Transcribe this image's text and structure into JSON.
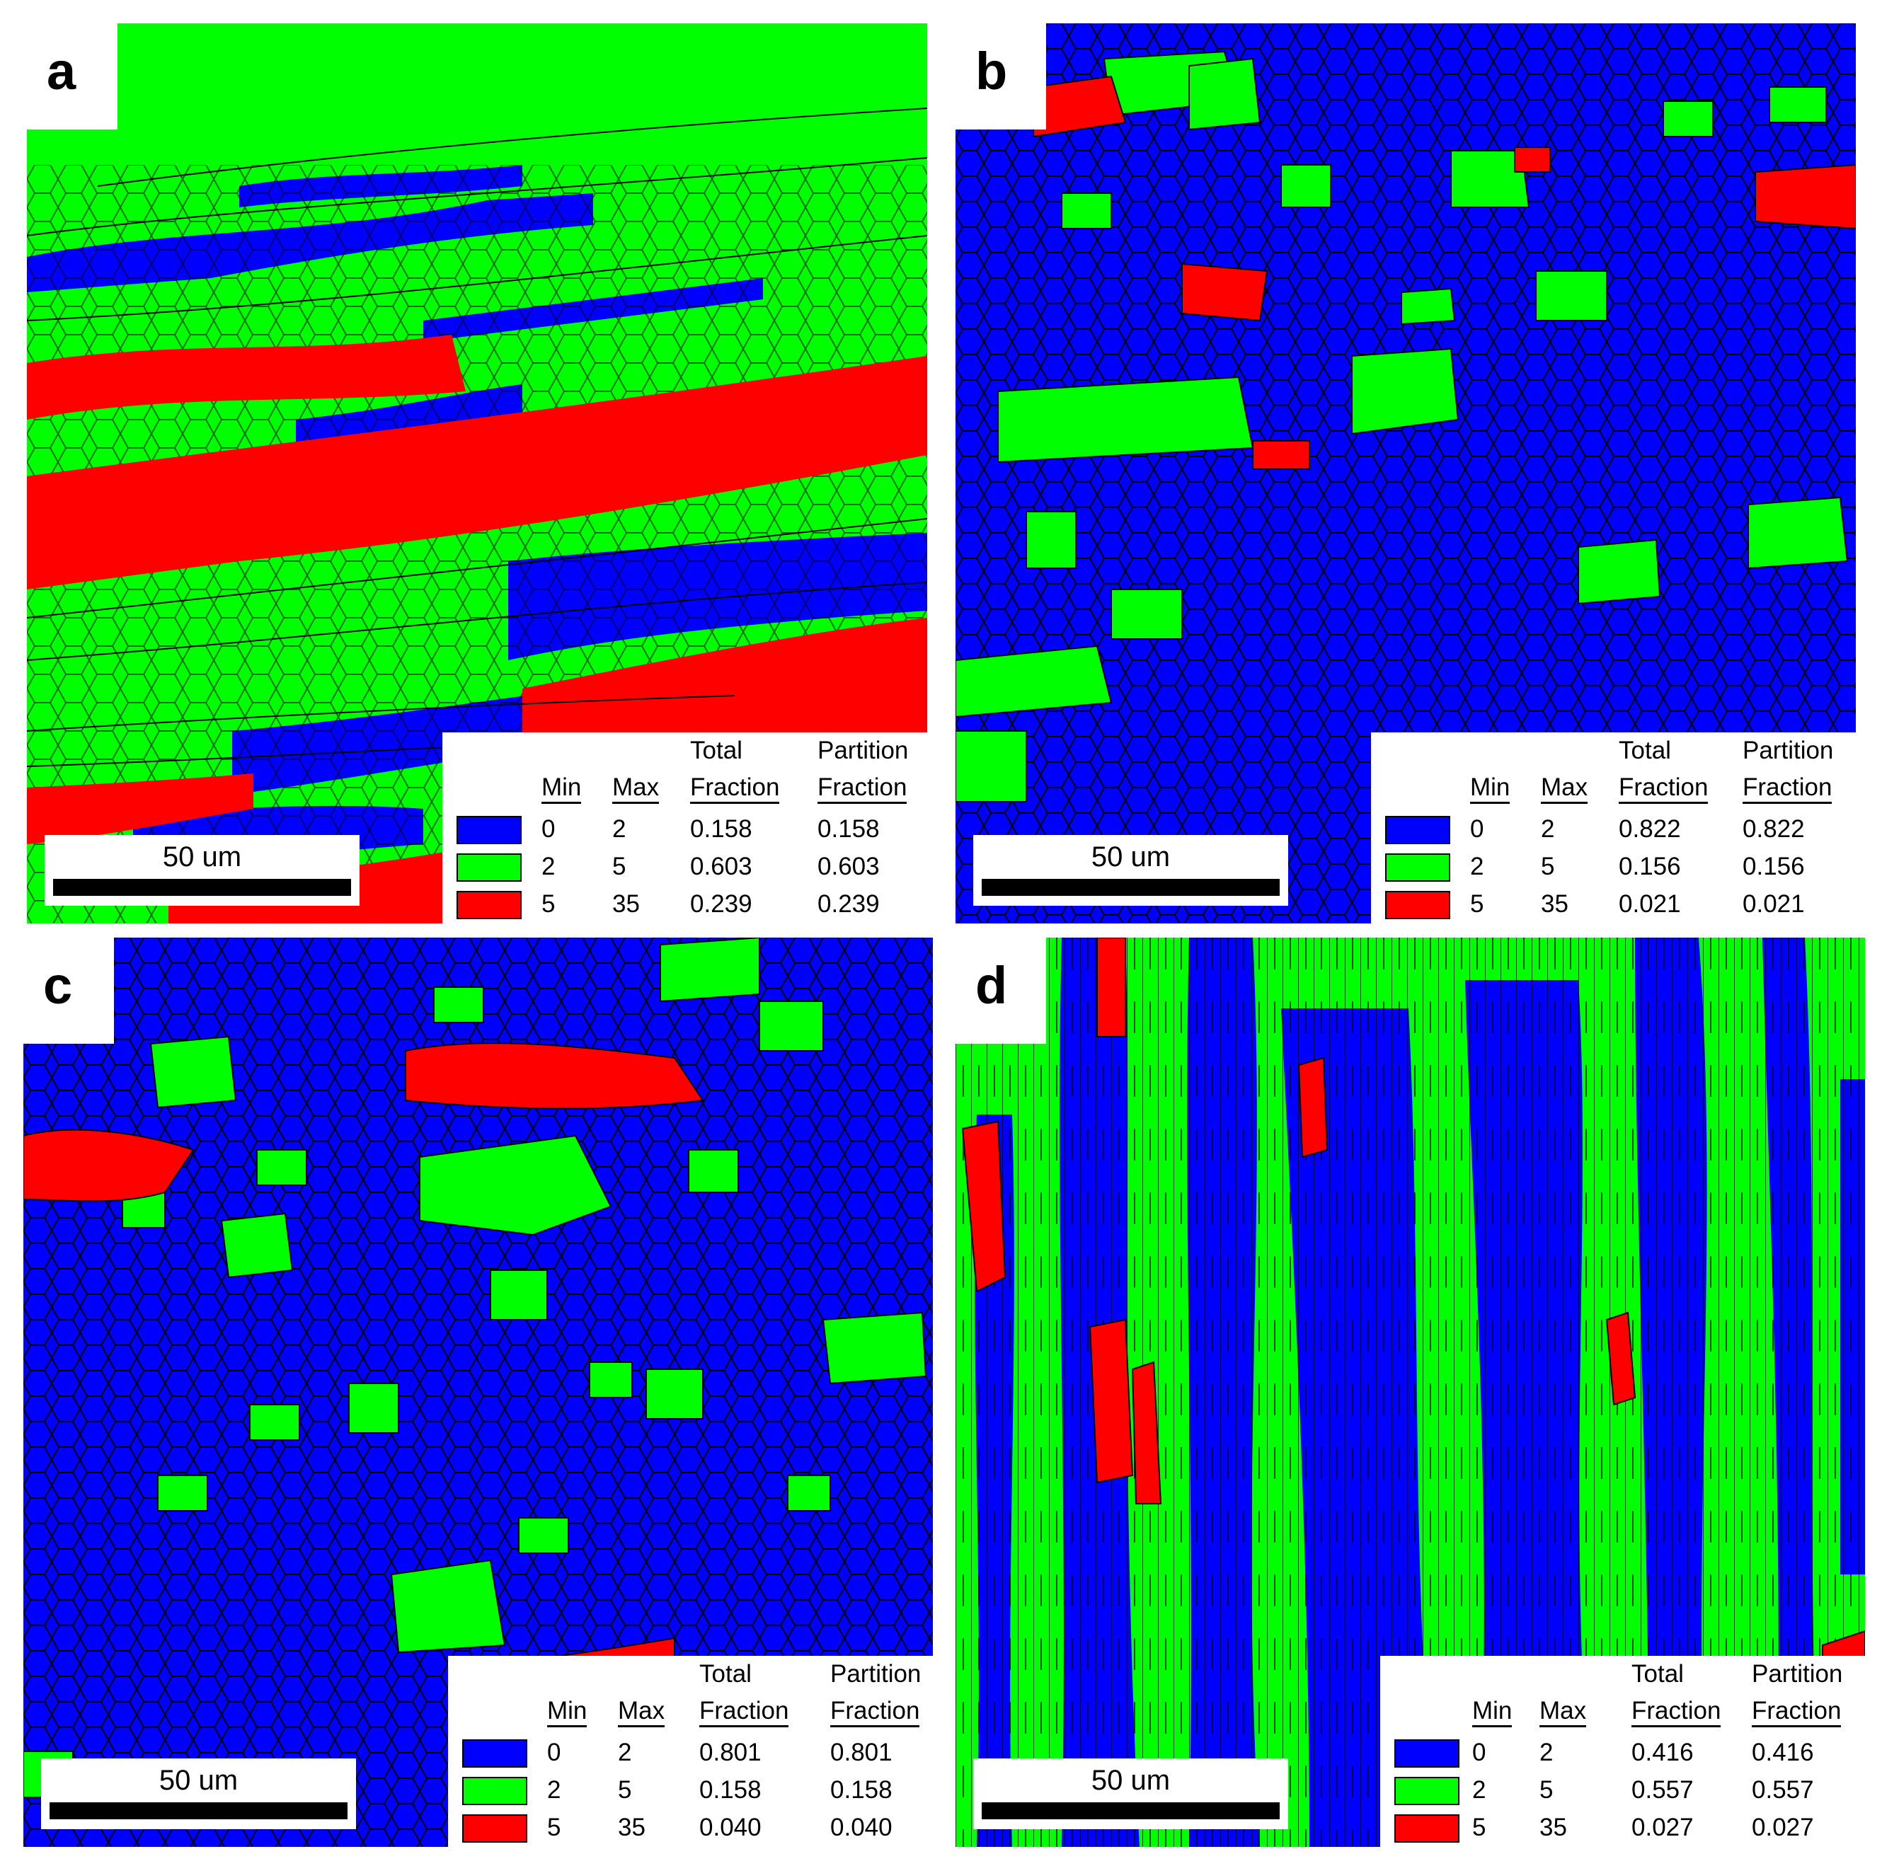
{
  "colors": {
    "low": "#0000ff",
    "mid": "#00ff00",
    "high": "#ff0000",
    "boundary": "#000000"
  },
  "panels": [
    {
      "letter": "a",
      "scale_label": "50 um",
      "legend": {
        "head_total": "Total",
        "head_partition": "Partition",
        "col_min": "Min",
        "col_max": "Max",
        "col_total": "Fraction",
        "col_partition": "Fraction",
        "rows": [
          {
            "min": "0",
            "max": "2",
            "total": "0.158",
            "partition": "0.158"
          },
          {
            "min": "2",
            "max": "5",
            "total": "0.603",
            "partition": "0.603"
          },
          {
            "min": "5",
            "max": "35",
            "total": "0.239",
            "partition": "0.239"
          }
        ]
      }
    },
    {
      "letter": "b",
      "scale_label": "50 um",
      "legend": {
        "head_total": "Total",
        "head_partition": "Partition",
        "col_min": "Min",
        "col_max": "Max",
        "col_total": "Fraction",
        "col_partition": "Fraction",
        "rows": [
          {
            "min": "0",
            "max": "2",
            "total": "0.822",
            "partition": "0.822"
          },
          {
            "min": "2",
            "max": "5",
            "total": "0.156",
            "partition": "0.156"
          },
          {
            "min": "5",
            "max": "35",
            "total": "0.021",
            "partition": "0.021"
          }
        ]
      }
    },
    {
      "letter": "c",
      "scale_label": "50 um",
      "legend": {
        "head_total": "Total",
        "head_partition": "Partition",
        "col_min": "Min",
        "col_max": "Max",
        "col_total": "Fraction",
        "col_partition": "Fraction",
        "rows": [
          {
            "min": "0",
            "max": "2",
            "total": "0.801",
            "partition": "0.801"
          },
          {
            "min": "2",
            "max": "5",
            "total": "0.158",
            "partition": "0.158"
          },
          {
            "min": "5",
            "max": "35",
            "total": "0.040",
            "partition": "0.040"
          }
        ]
      }
    },
    {
      "letter": "d",
      "scale_label": "50 um",
      "legend": {
        "head_total": "Total",
        "head_partition": "Partition",
        "col_min": "Min",
        "col_max": "Max",
        "col_total": "Fraction",
        "col_partition": "Fraction",
        "rows": [
          {
            "min": "0",
            "max": "2",
            "total": "0.416",
            "partition": "0.416"
          },
          {
            "min": "2",
            "max": "5",
            "total": "0.557",
            "partition": "0.557"
          },
          {
            "min": "5",
            "max": "35",
            "total": "0.027",
            "partition": "0.027"
          }
        ]
      }
    }
  ]
}
